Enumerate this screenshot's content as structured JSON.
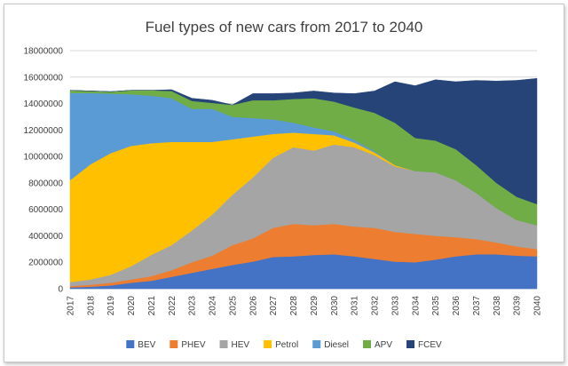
{
  "chart_data": {
    "type": "area",
    "stacked": true,
    "title": "Fuel types of new cars from 2017 to 2040",
    "xlabel": "",
    "ylabel": "",
    "ylim": [
      0,
      18000000
    ],
    "yticks": [
      "0",
      "2000000",
      "4000000",
      "6000000",
      "8000000",
      "10000000",
      "12000000",
      "14000000",
      "16000000",
      "18000000"
    ],
    "grid": true,
    "legend_position": "bottom",
    "categories": [
      "2017",
      "2018",
      "2019",
      "2020",
      "2021",
      "2022",
      "2023",
      "2024",
      "2025",
      "2026",
      "2027",
      "2028",
      "2029",
      "2030",
      "2031",
      "2032",
      "2033",
      "2034",
      "2035",
      "2036",
      "2037",
      "2038",
      "2039",
      "2040"
    ],
    "series": [
      {
        "name": "BEV",
        "color": "#4472C4",
        "values": [
          100000,
          150000,
          250000,
          450000,
          600000,
          900000,
          1200000,
          1500000,
          1800000,
          2050000,
          2400000,
          2450000,
          2550000,
          2600000,
          2450000,
          2250000,
          2050000,
          2000000,
          2200000,
          2450000,
          2600000,
          2600000,
          2500000,
          2450000
        ]
      },
      {
        "name": "PHEV",
        "color": "#ED7D31",
        "values": [
          100000,
          150000,
          200000,
          250000,
          350000,
          500000,
          800000,
          1000000,
          1500000,
          1750000,
          2200000,
          2450000,
          2250000,
          2300000,
          2250000,
          2350000,
          2250000,
          2150000,
          1800000,
          1450000,
          1150000,
          900000,
          700000,
          550000
        ]
      },
      {
        "name": "HEV",
        "color": "#A5A5A5",
        "values": [
          300000,
          400000,
          600000,
          1000000,
          1600000,
          1900000,
          2400000,
          3100000,
          3800000,
          4600000,
          5300000,
          5800000,
          5650000,
          6000000,
          6000000,
          5500000,
          4950000,
          4750000,
          4800000,
          4300000,
          3500000,
          2600000,
          2000000,
          1800000
        ]
      },
      {
        "name": "Petrol",
        "color": "#FFC000",
        "values": [
          7700000,
          8700000,
          9200000,
          9100000,
          8450000,
          7800000,
          6700000,
          5500000,
          4200000,
          3100000,
          1800000,
          1100000,
          1250000,
          700000,
          350000,
          200000,
          100000,
          0,
          0,
          0,
          0,
          0,
          0,
          0
        ]
      },
      {
        "name": "Diesel",
        "color": "#5B9BD5",
        "values": [
          6600000,
          5400000,
          4500000,
          3900000,
          3600000,
          3300000,
          2500000,
          2500000,
          1700000,
          1400000,
          1100000,
          750000,
          500000,
          300000,
          200000,
          100000,
          0,
          0,
          0,
          0,
          0,
          0,
          0,
          0
        ]
      },
      {
        "name": "APV",
        "color": "#70AD47",
        "values": [
          200000,
          150000,
          150000,
          300000,
          400000,
          550000,
          600000,
          450000,
          900000,
          1350000,
          1450000,
          1800000,
          2200000,
          2250000,
          2450000,
          2900000,
          3200000,
          2500000,
          2400000,
          2350000,
          2100000,
          1900000,
          1750000,
          1600000
        ]
      },
      {
        "name": "FCEV",
        "color": "#264478",
        "values": [
          0,
          0,
          0,
          0,
          0,
          100000,
          200000,
          200000,
          0,
          500000,
          500000,
          450000,
          550000,
          650000,
          1050000,
          1650000,
          3100000,
          3950000,
          4600000,
          5100000,
          6400000,
          7700000,
          8800000,
          9500000
        ]
      }
    ]
  }
}
